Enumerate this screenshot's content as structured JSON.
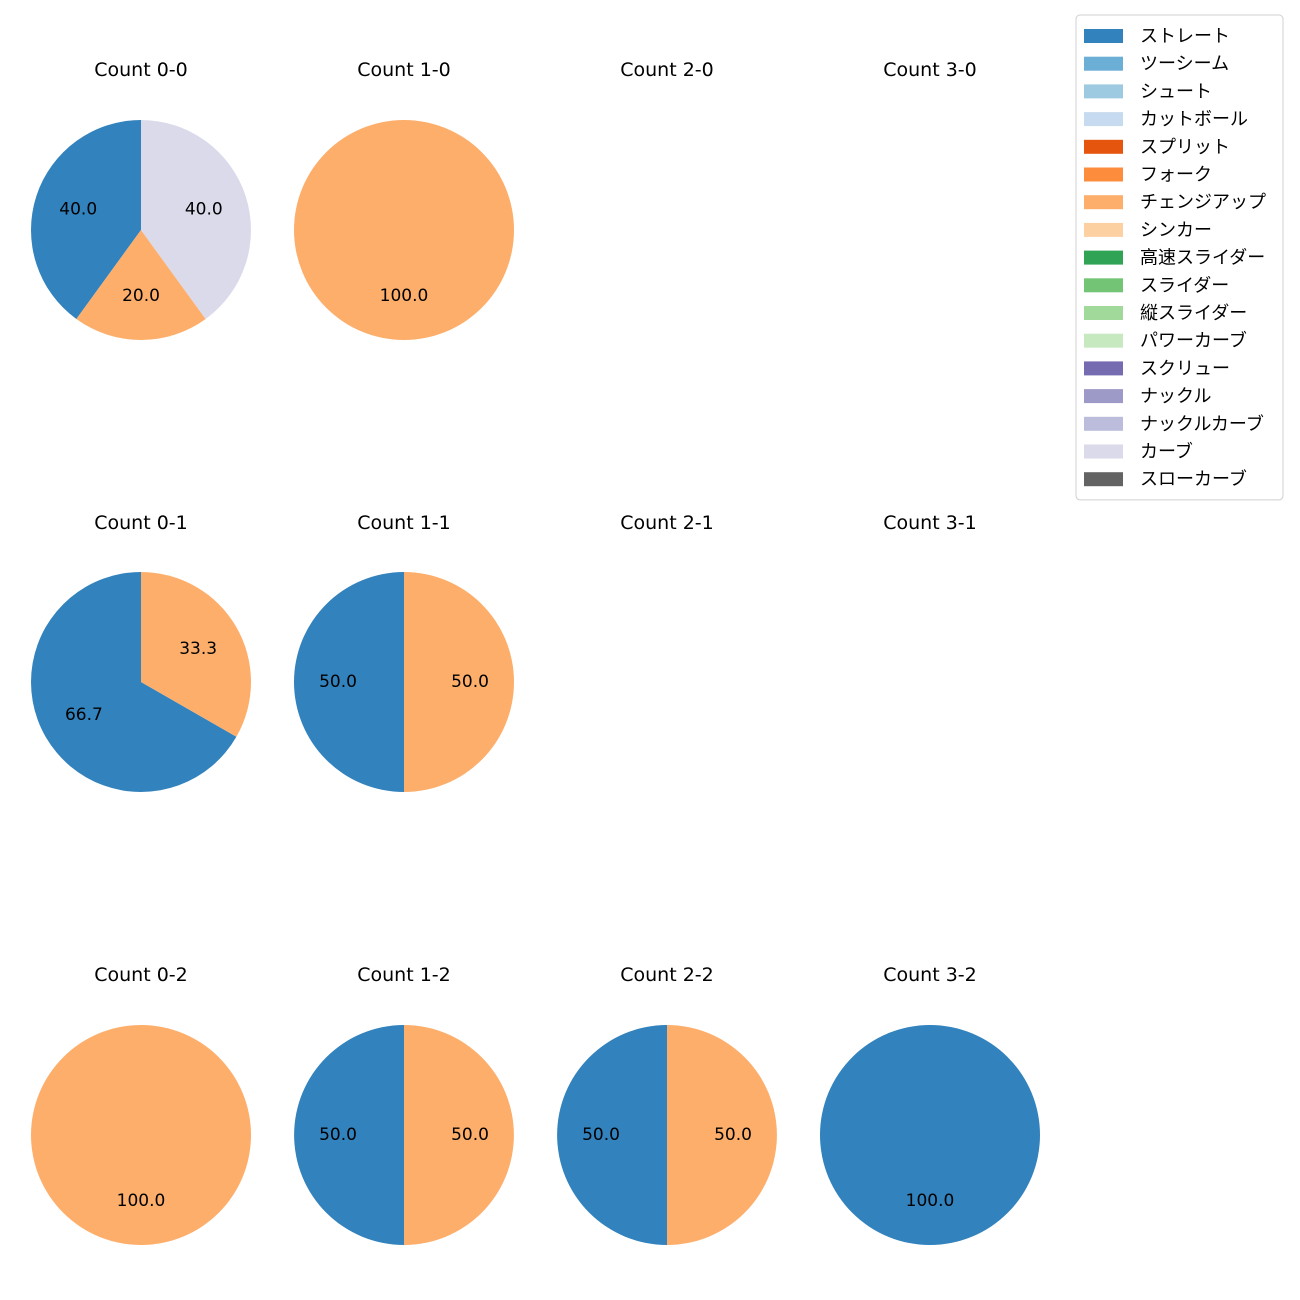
{
  "pitch_types": [
    {
      "name": "ストレート",
      "color": "#3182bd"
    },
    {
      "name": "ツーシーム",
      "color": "#6baed6"
    },
    {
      "name": "シュート",
      "color": "#9ecae1"
    },
    {
      "name": "カットボール",
      "color": "#c6dbef"
    },
    {
      "name": "スプリット",
      "color": "#e6550d"
    },
    {
      "name": "フォーク",
      "color": "#fd8d3c"
    },
    {
      "name": "チェンジアップ",
      "color": "#fdae6b"
    },
    {
      "name": "シンカー",
      "color": "#fdd0a2"
    },
    {
      "name": "高速スライダー",
      "color": "#31a354"
    },
    {
      "name": "スライダー",
      "color": "#74c476"
    },
    {
      "name": "縦スライダー",
      "color": "#a1d99b"
    },
    {
      "name": "パワーカーブ",
      "color": "#c7e9c0"
    },
    {
      "name": "スクリュー",
      "color": "#756bb1"
    },
    {
      "name": "ナックル",
      "color": "#9e9ac8"
    },
    {
      "name": "ナックルカーブ",
      "color": "#bcbddc"
    },
    {
      "name": "カーブ",
      "color": "#dadaeb"
    },
    {
      "name": "スローカーブ",
      "color": "#636363"
    }
  ],
  "chart_data": [
    {
      "type": "pie",
      "title": "Count 0-0",
      "slices": [
        {
          "label": "ストレート",
          "value": 40.0
        },
        {
          "label": "チェンジアップ",
          "value": 20.0
        },
        {
          "label": "カーブ",
          "value": 40.0
        }
      ]
    },
    {
      "type": "pie",
      "title": "Count 1-0",
      "slices": [
        {
          "label": "チェンジアップ",
          "value": 100.0
        }
      ]
    },
    {
      "type": "pie",
      "title": "Count 2-0",
      "slices": []
    },
    {
      "type": "pie",
      "title": "Count 3-0",
      "slices": []
    },
    {
      "type": "pie",
      "title": "Count 0-1",
      "slices": [
        {
          "label": "ストレート",
          "value": 66.7
        },
        {
          "label": "チェンジアップ",
          "value": 33.3
        }
      ]
    },
    {
      "type": "pie",
      "title": "Count 1-1",
      "slices": [
        {
          "label": "ストレート",
          "value": 50.0
        },
        {
          "label": "チェンジアップ",
          "value": 50.0
        }
      ]
    },
    {
      "type": "pie",
      "title": "Count 2-1",
      "slices": []
    },
    {
      "type": "pie",
      "title": "Count 3-1",
      "slices": []
    },
    {
      "type": "pie",
      "title": "Count 0-2",
      "slices": [
        {
          "label": "チェンジアップ",
          "value": 100.0
        }
      ]
    },
    {
      "type": "pie",
      "title": "Count 1-2",
      "slices": [
        {
          "label": "ストレート",
          "value": 50.0
        },
        {
          "label": "チェンジアップ",
          "value": 50.0
        }
      ]
    },
    {
      "type": "pie",
      "title": "Count 2-2",
      "slices": [
        {
          "label": "ストレート",
          "value": 50.0
        },
        {
          "label": "チェンジアップ",
          "value": 50.0
        }
      ]
    },
    {
      "type": "pie",
      "title": "Count 3-2",
      "slices": [
        {
          "label": "ストレート",
          "value": 100.0
        }
      ]
    }
  ]
}
